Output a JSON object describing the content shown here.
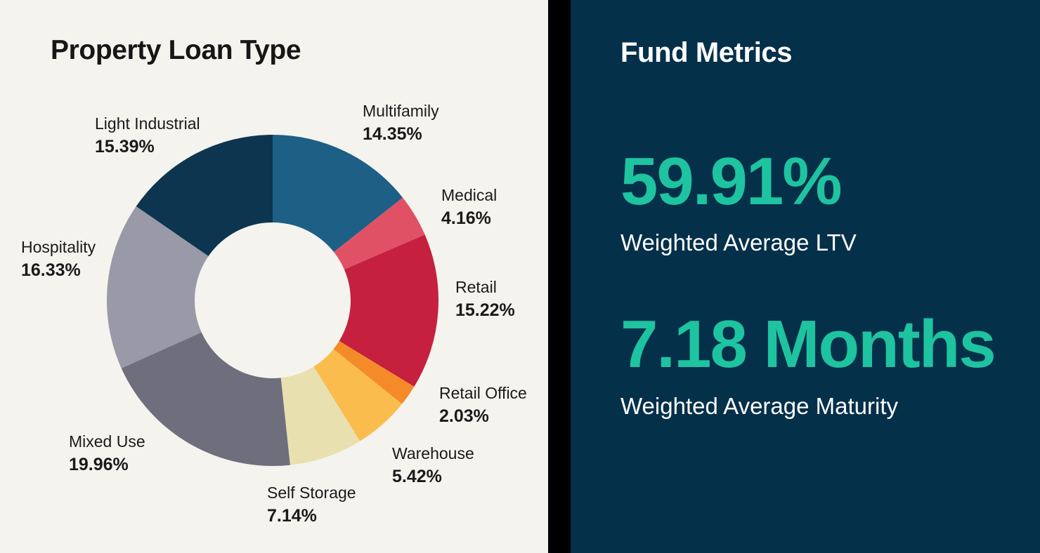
{
  "left_panel": {
    "title": "Property Loan Type"
  },
  "chart_data": {
    "type": "pie",
    "subtype": "donut",
    "title": "Property Loan Type",
    "units": "%",
    "total": 100.0,
    "segments": [
      {
        "label": "Multifamily",
        "value": 14.35,
        "display": "14.35%",
        "color": "#1d5f85"
      },
      {
        "label": "Medical",
        "value": 4.16,
        "display": "4.16%",
        "color": "#e05166"
      },
      {
        "label": "Retail",
        "value": 15.22,
        "display": "15.22%",
        "color": "#c5203e"
      },
      {
        "label": "Retail Office",
        "value": 2.03,
        "display": "2.03%",
        "color": "#f58a28"
      },
      {
        "label": "Warehouse",
        "value": 5.42,
        "display": "5.42%",
        "color": "#fabd4d"
      },
      {
        "label": "Self Storage",
        "value": 7.14,
        "display": "7.14%",
        "color": "#e9e0af"
      },
      {
        "label": "Mixed Use",
        "value": 19.96,
        "display": "19.96%",
        "color": "#6e6e7d"
      },
      {
        "label": "Hospitality",
        "value": 16.33,
        "display": "16.33%",
        "color": "#9a99a8"
      },
      {
        "label": "Light Industrial",
        "value": 15.39,
        "display": "15.39%",
        "color": "#0d3550"
      }
    ],
    "start_angle_deg": 0,
    "direction": "clockwise",
    "legend_position": "around-chart",
    "background_color": "#f5f3ee"
  },
  "fund_metrics": {
    "title": "Fund Metrics",
    "metrics": [
      {
        "value": "59.91%",
        "label": "Weighted Average LTV"
      },
      {
        "value": "7.18 Months",
        "label": "Weighted Average Maturity"
      }
    ],
    "accent_color": "#1ec3a0",
    "background_color": "#04304a"
  }
}
